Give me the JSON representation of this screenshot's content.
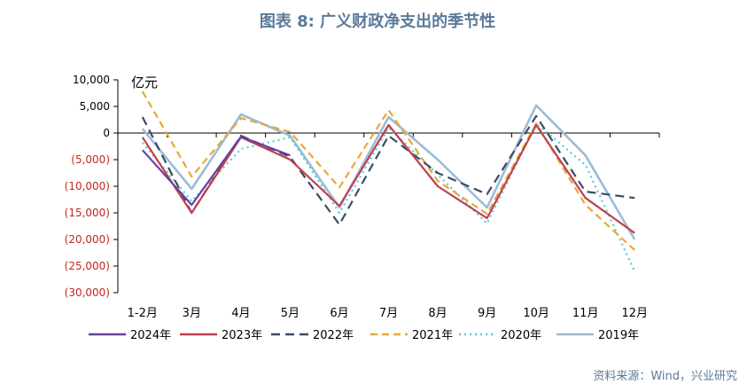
{
  "chart_data": {
    "type": "line",
    "title": "图表 8:  广义财政净支出的季节性",
    "unit_label": "亿元",
    "categories": [
      "1-2月",
      "3月",
      "4月",
      "5月",
      "6月",
      "7月",
      "8月",
      "9月",
      "10月",
      "11月",
      "12月"
    ],
    "y_ticks": [
      "10,000",
      "5,000",
      "0",
      "(5,000)",
      "(10,000)",
      "(15,000)",
      "(20,000)",
      "(25,000)",
      "(30,000)"
    ],
    "ylim": [
      -30000,
      10000
    ],
    "legend_position": "bottom",
    "grid": false,
    "series": [
      {
        "name": "2024年",
        "color": "#6a3fa0",
        "dash": "",
        "values": [
          -3200,
          -13500,
          -700,
          -4200,
          null,
          null,
          null,
          null,
          null,
          null,
          null
        ]
      },
      {
        "name": "2023年",
        "color": "#c0404f",
        "dash": "",
        "values": [
          -800,
          -15000,
          -800,
          -5000,
          -13700,
          1500,
          -10000,
          -16000,
          1500,
          -12200,
          -18800
        ]
      },
      {
        "name": "2022年",
        "color": "#3a4d66",
        "dash": "10,6",
        "values": [
          3000,
          -15000,
          -500,
          -4500,
          -17200,
          -500,
          -7500,
          -11500,
          3200,
          -11000,
          -12200
        ]
      },
      {
        "name": "2021年",
        "color": "#e8a838",
        "dash": "8,5",
        "values": [
          7800,
          -8200,
          2800,
          200,
          -10200,
          4300,
          -9000,
          -15200,
          1800,
          -13500,
          -22000
        ]
      },
      {
        "name": "2020年",
        "color": "#5ac8d8",
        "dash": "2,4",
        "values": [
          -1800,
          -12800,
          -3000,
          -800,
          -15000,
          1000,
          -7800,
          -17000,
          1800,
          -6000,
          -26000
        ]
      },
      {
        "name": "2019年",
        "color": "#9bbcd6",
        "dash": "",
        "values": [
          800,
          -10500,
          3500,
          -500,
          -14000,
          3000,
          -5000,
          -14000,
          5200,
          -4200,
          -20000
        ]
      }
    ]
  },
  "source_note": "资料来源：Wind，兴业研究"
}
